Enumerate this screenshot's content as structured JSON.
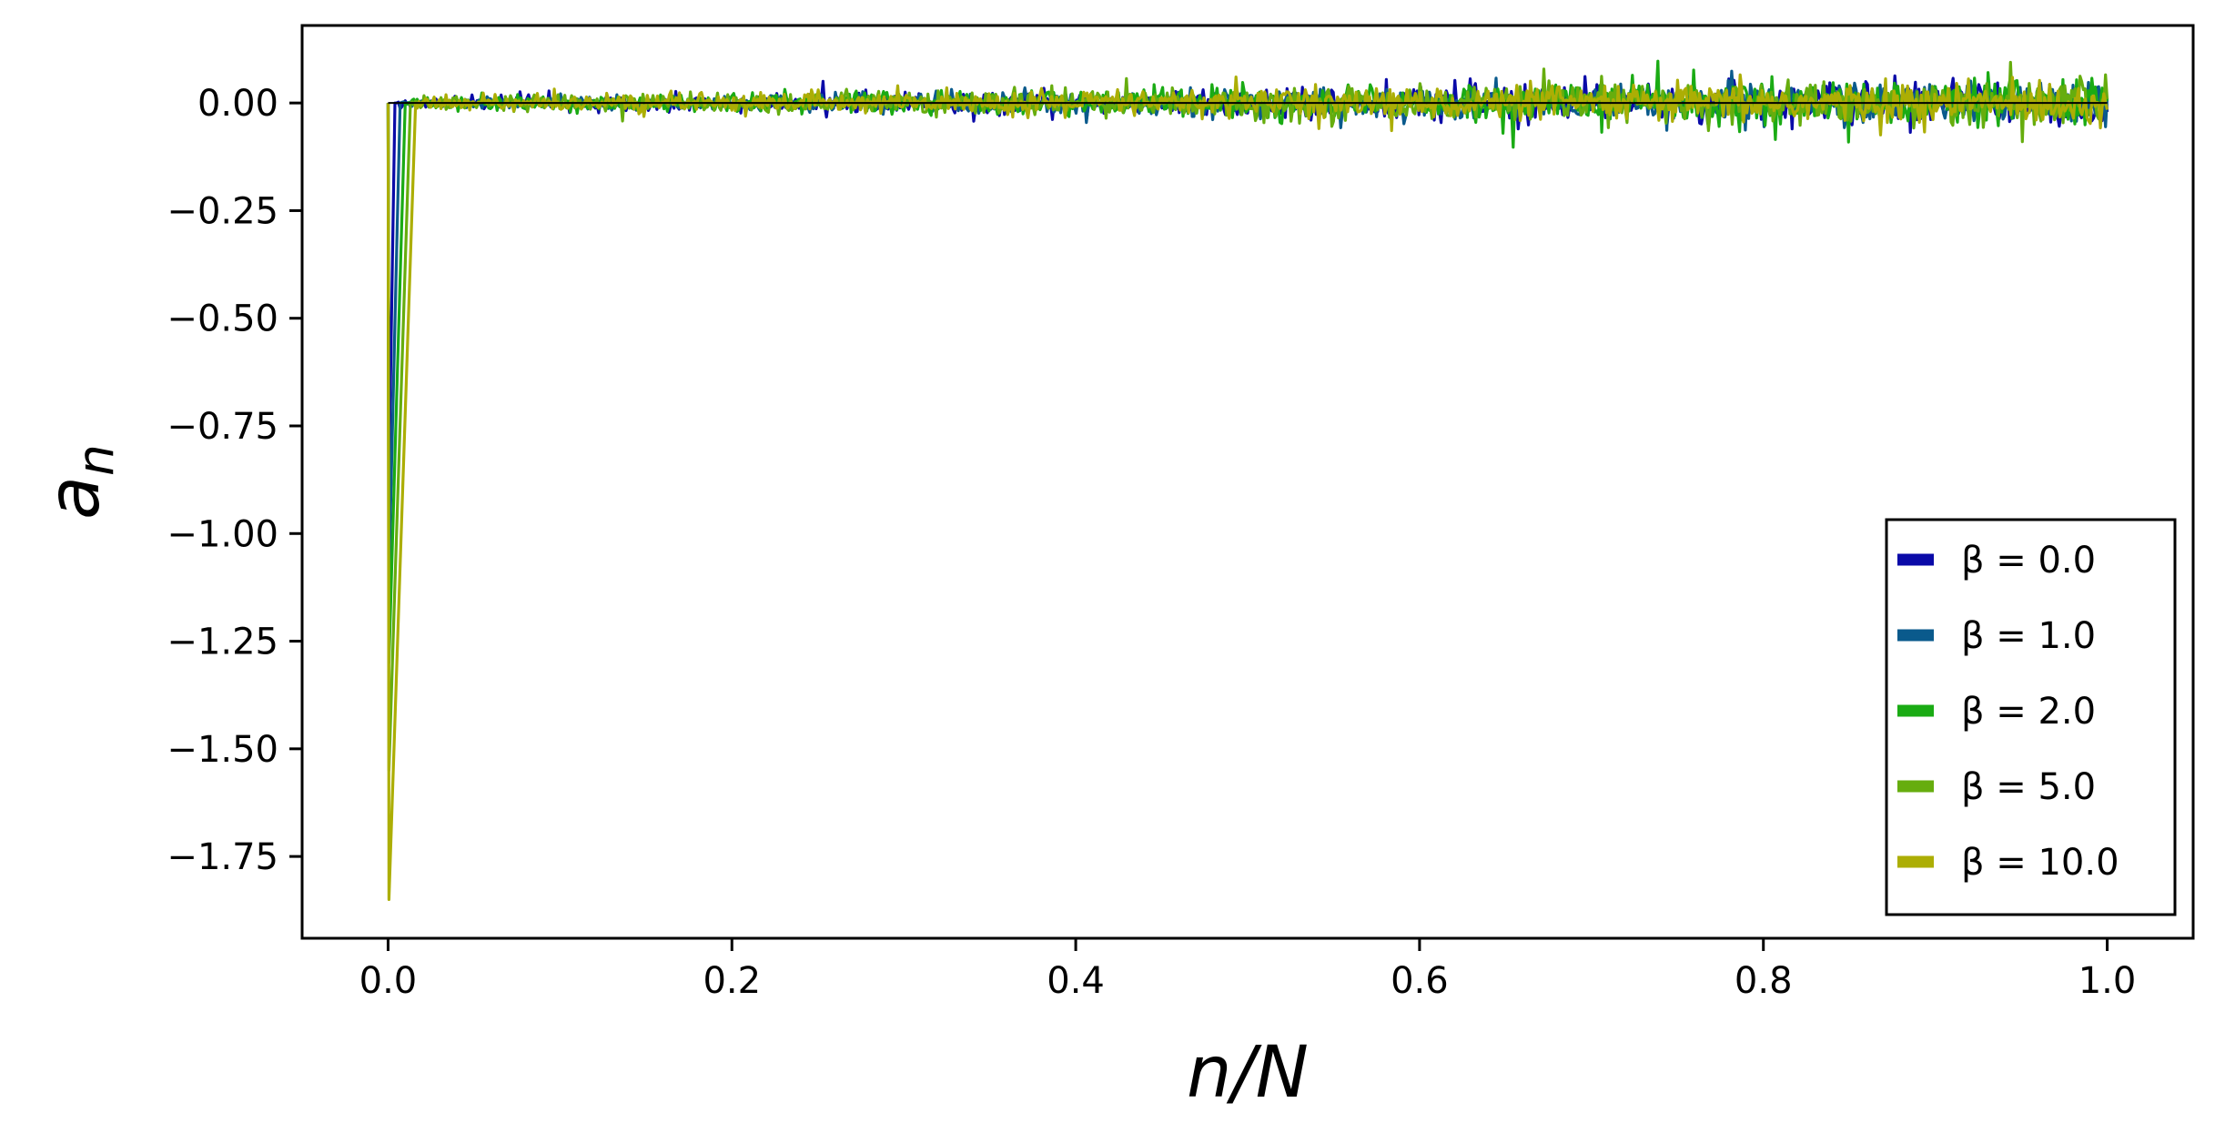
{
  "chart_data": {
    "type": "line",
    "xlabel": "n/N",
    "ylabel": "a_n",
    "ylabel_main": "a",
    "ylabel_sub": "n",
    "xlim": [
      -0.05,
      1.05
    ],
    "ylim": [
      -1.94,
      0.18
    ],
    "xticks": [
      0.0,
      0.2,
      0.4,
      0.6,
      0.8,
      1.0
    ],
    "xtick_labels": [
      "0.0",
      "0.2",
      "0.4",
      "0.6",
      "0.8",
      "1.0"
    ],
    "yticks": [
      0.0,
      -0.25,
      -0.5,
      -0.75,
      -1.0,
      -1.25,
      -1.5,
      -1.75
    ],
    "ytick_labels": [
      "0.00",
      "−0.25",
      "−0.50",
      "−0.75",
      "−1.00",
      "−1.25",
      "−1.50",
      "−1.75"
    ],
    "grid": false,
    "legend_position": "lower-right",
    "series": [
      {
        "name": "β = 0.0",
        "beta": 0.0,
        "color": "#0a0aa8",
        "initial_dip": -0.87,
        "noise_start": 0.01,
        "noise_end": 0.045
      },
      {
        "name": "β = 1.0",
        "beta": 1.0,
        "color": "#0a5a8c",
        "initial_dip": -1.1,
        "noise_start": 0.01,
        "noise_end": 0.045
      },
      {
        "name": "β = 2.0",
        "beta": 2.0,
        "color": "#1aab14",
        "initial_dip": -1.3,
        "noise_start": 0.012,
        "noise_end": 0.05
      },
      {
        "name": "β = 5.0",
        "beta": 5.0,
        "color": "#66ad0e",
        "initial_dip": -1.55,
        "noise_start": 0.012,
        "noise_end": 0.05
      },
      {
        "name": "β = 10.0",
        "beta": 10.0,
        "color": "#acae04",
        "initial_dip": -1.85,
        "noise_start": 0.012,
        "noise_end": 0.045
      }
    ]
  }
}
